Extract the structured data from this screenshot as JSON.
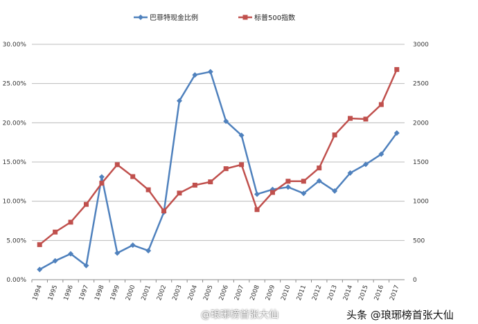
{
  "chart_data": {
    "type": "line",
    "categories": [
      "1994",
      "1995",
      "1996",
      "1997",
      "1998",
      "1999",
      "2000",
      "2001",
      "2002",
      "2003",
      "2004",
      "2005",
      "2006",
      "2007",
      "2008",
      "2009",
      "2010",
      "2011",
      "2012",
      "2013",
      "2014",
      "2015",
      "2016",
      "2017"
    ],
    "series": [
      {
        "name": "巴菲特现金比例",
        "axis": "left",
        "color": "#4f81bd",
        "marker": "diamond",
        "values": [
          1.3,
          2.4,
          3.3,
          1.8,
          13.1,
          3.4,
          4.4,
          3.7,
          8.6,
          22.8,
          26.1,
          26.5,
          20.2,
          18.4,
          10.9,
          11.5,
          11.8,
          11.0,
          12.6,
          11.3,
          13.6,
          14.7,
          16.0,
          18.7
        ]
      },
      {
        "name": "标普500指数",
        "axis": "right",
        "color": "#c0504d",
        "marker": "square",
        "values": [
          447,
          607,
          733,
          960,
          1230,
          1466,
          1314,
          1146,
          876,
          1104,
          1205,
          1247,
          1415,
          1466,
          893,
          1112,
          1255,
          1255,
          1424,
          1845,
          2056,
          2047,
          2232,
          2679
        ]
      }
    ],
    "y_left": {
      "ylim": [
        0,
        30
      ],
      "ticks": [
        "0.00%",
        "5.00%",
        "10.00%",
        "15.00%",
        "20.00%",
        "25.00%",
        "30.00%"
      ]
    },
    "y_right": {
      "ylim": [
        0,
        3000
      ],
      "ticks": [
        "0",
        "500",
        "1000",
        "1500",
        "2000",
        "2500",
        "3000"
      ]
    },
    "grid": true,
    "legend": "top"
  },
  "watermarks": {
    "toutiao": "头条 @琅琊榜首张大仙",
    "weibo": "@琅琊榜首张大仙"
  }
}
